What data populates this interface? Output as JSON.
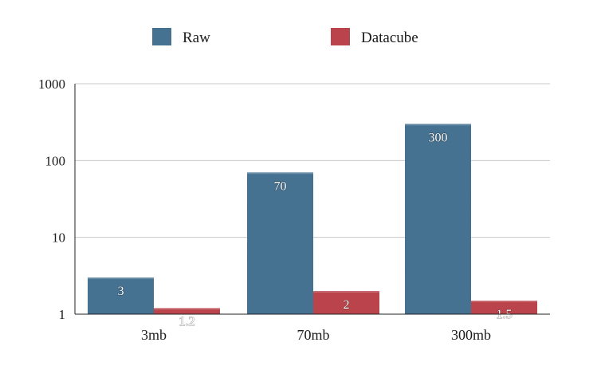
{
  "chart_data": {
    "type": "bar",
    "categories": [
      "3mb",
      "70mb",
      "300mb"
    ],
    "series": [
      {
        "name": "Raw",
        "values": [
          3,
          70,
          300
        ],
        "color": "#4a7696"
      },
      {
        "name": "Datacube",
        "values": [
          1.2,
          2,
          1.5
        ],
        "color": "#c0474f"
      }
    ],
    "data_labels": [
      [
        "3",
        "70",
        "300"
      ],
      [
        "1.2",
        "2",
        "1.5"
      ]
    ],
    "yscale": "log",
    "ylim": [
      1,
      1000
    ],
    "yticks": [
      1,
      10,
      100,
      1000
    ],
    "ytick_labels": [
      "1",
      "10",
      "100",
      "1000"
    ],
    "grid": true,
    "legend": "top"
  }
}
